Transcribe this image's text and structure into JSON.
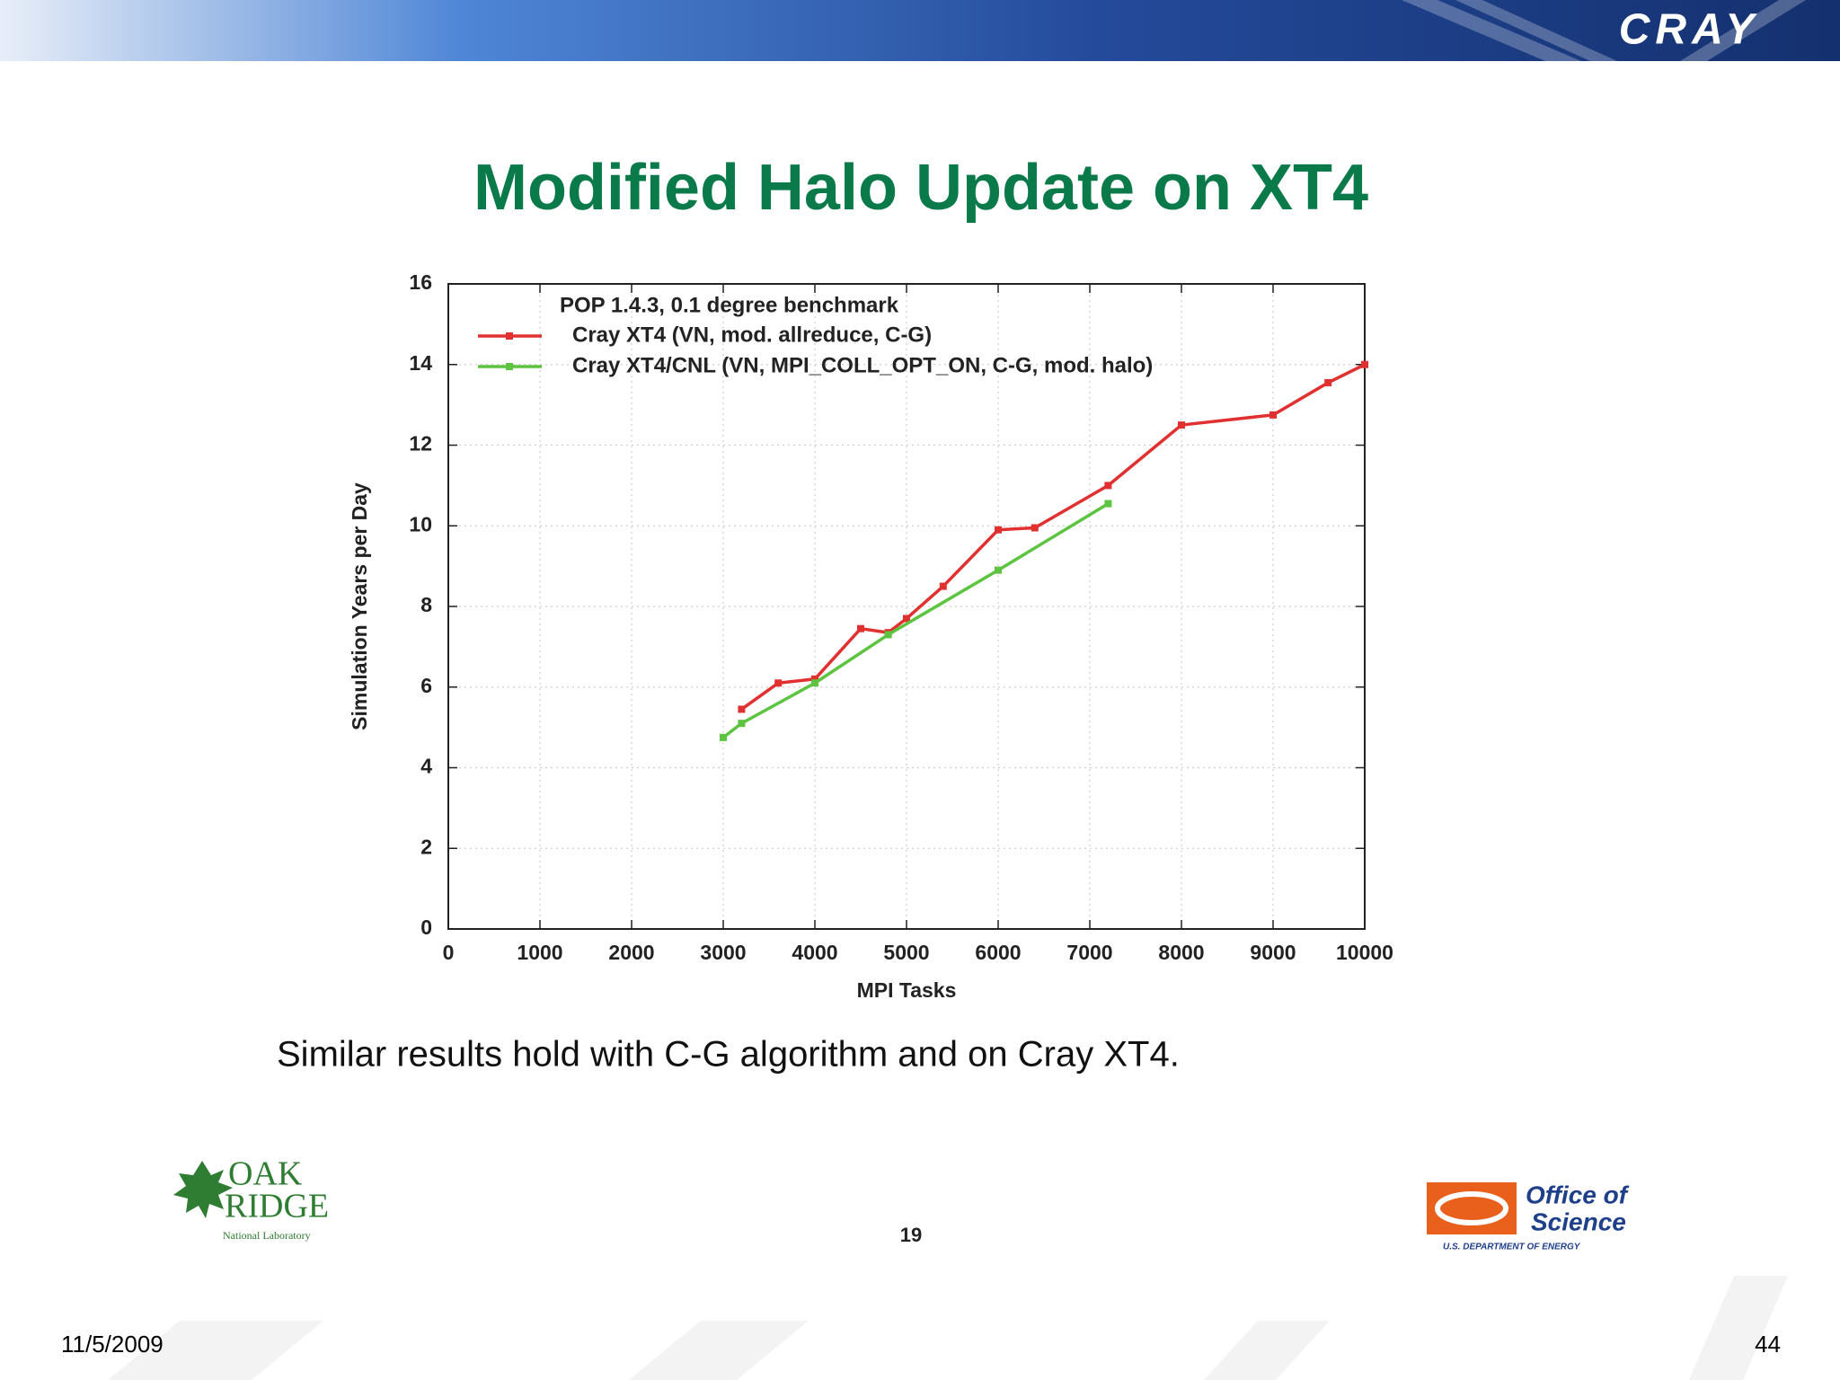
{
  "header": {
    "logo": "CRAY"
  },
  "chart_data": {
    "type": "line",
    "title": "Modified Halo Update on XT4",
    "legend_title": "POP 1.4.3, 0.1 degree benchmark",
    "xlabel": "MPI Tasks",
    "ylabel": "Simulation Years per Day",
    "xlim": [
      0,
      10000
    ],
    "ylim": [
      0,
      16
    ],
    "xticks": [
      0,
      1000,
      2000,
      3000,
      4000,
      5000,
      6000,
      7000,
      8000,
      9000,
      10000
    ],
    "yticks": [
      0,
      2,
      4,
      6,
      8,
      10,
      12,
      14,
      16
    ],
    "grid": true,
    "legend": "upper left",
    "series": [
      {
        "name": "Cray XT4 (VN, mod. allreduce, C-G)",
        "color": "#e03030",
        "x": [
          3200,
          3600,
          4000,
          4500,
          4800,
          5000,
          5400,
          6000,
          6400,
          7200,
          8000,
          9000,
          9600,
          10000
        ],
        "values": [
          5.45,
          6.1,
          6.2,
          7.45,
          7.35,
          7.7,
          8.5,
          9.9,
          9.95,
          11.0,
          12.5,
          12.75,
          13.55,
          14.0
        ]
      },
      {
        "name": "Cray XT4/CNL (VN, MPI_COLL_OPT_ON, C-G, mod. halo)",
        "color": "#5cc440",
        "x": [
          3000,
          3200,
          4000,
          4800,
          6000,
          7200
        ],
        "values": [
          4.75,
          5.1,
          6.1,
          7.3,
          8.9,
          10.55
        ]
      }
    ]
  },
  "caption": "Similar results hold with C-G algorithm and on Cray XT4.",
  "inner_page_number": "19",
  "logos": {
    "left": [
      "OAK",
      "RIDGE",
      "National Laboratory"
    ],
    "right": [
      "Office of",
      "Science",
      "U.S. DEPARTMENT OF ENERGY"
    ]
  },
  "footer": {
    "date": "11/5/2009",
    "page": "44"
  }
}
